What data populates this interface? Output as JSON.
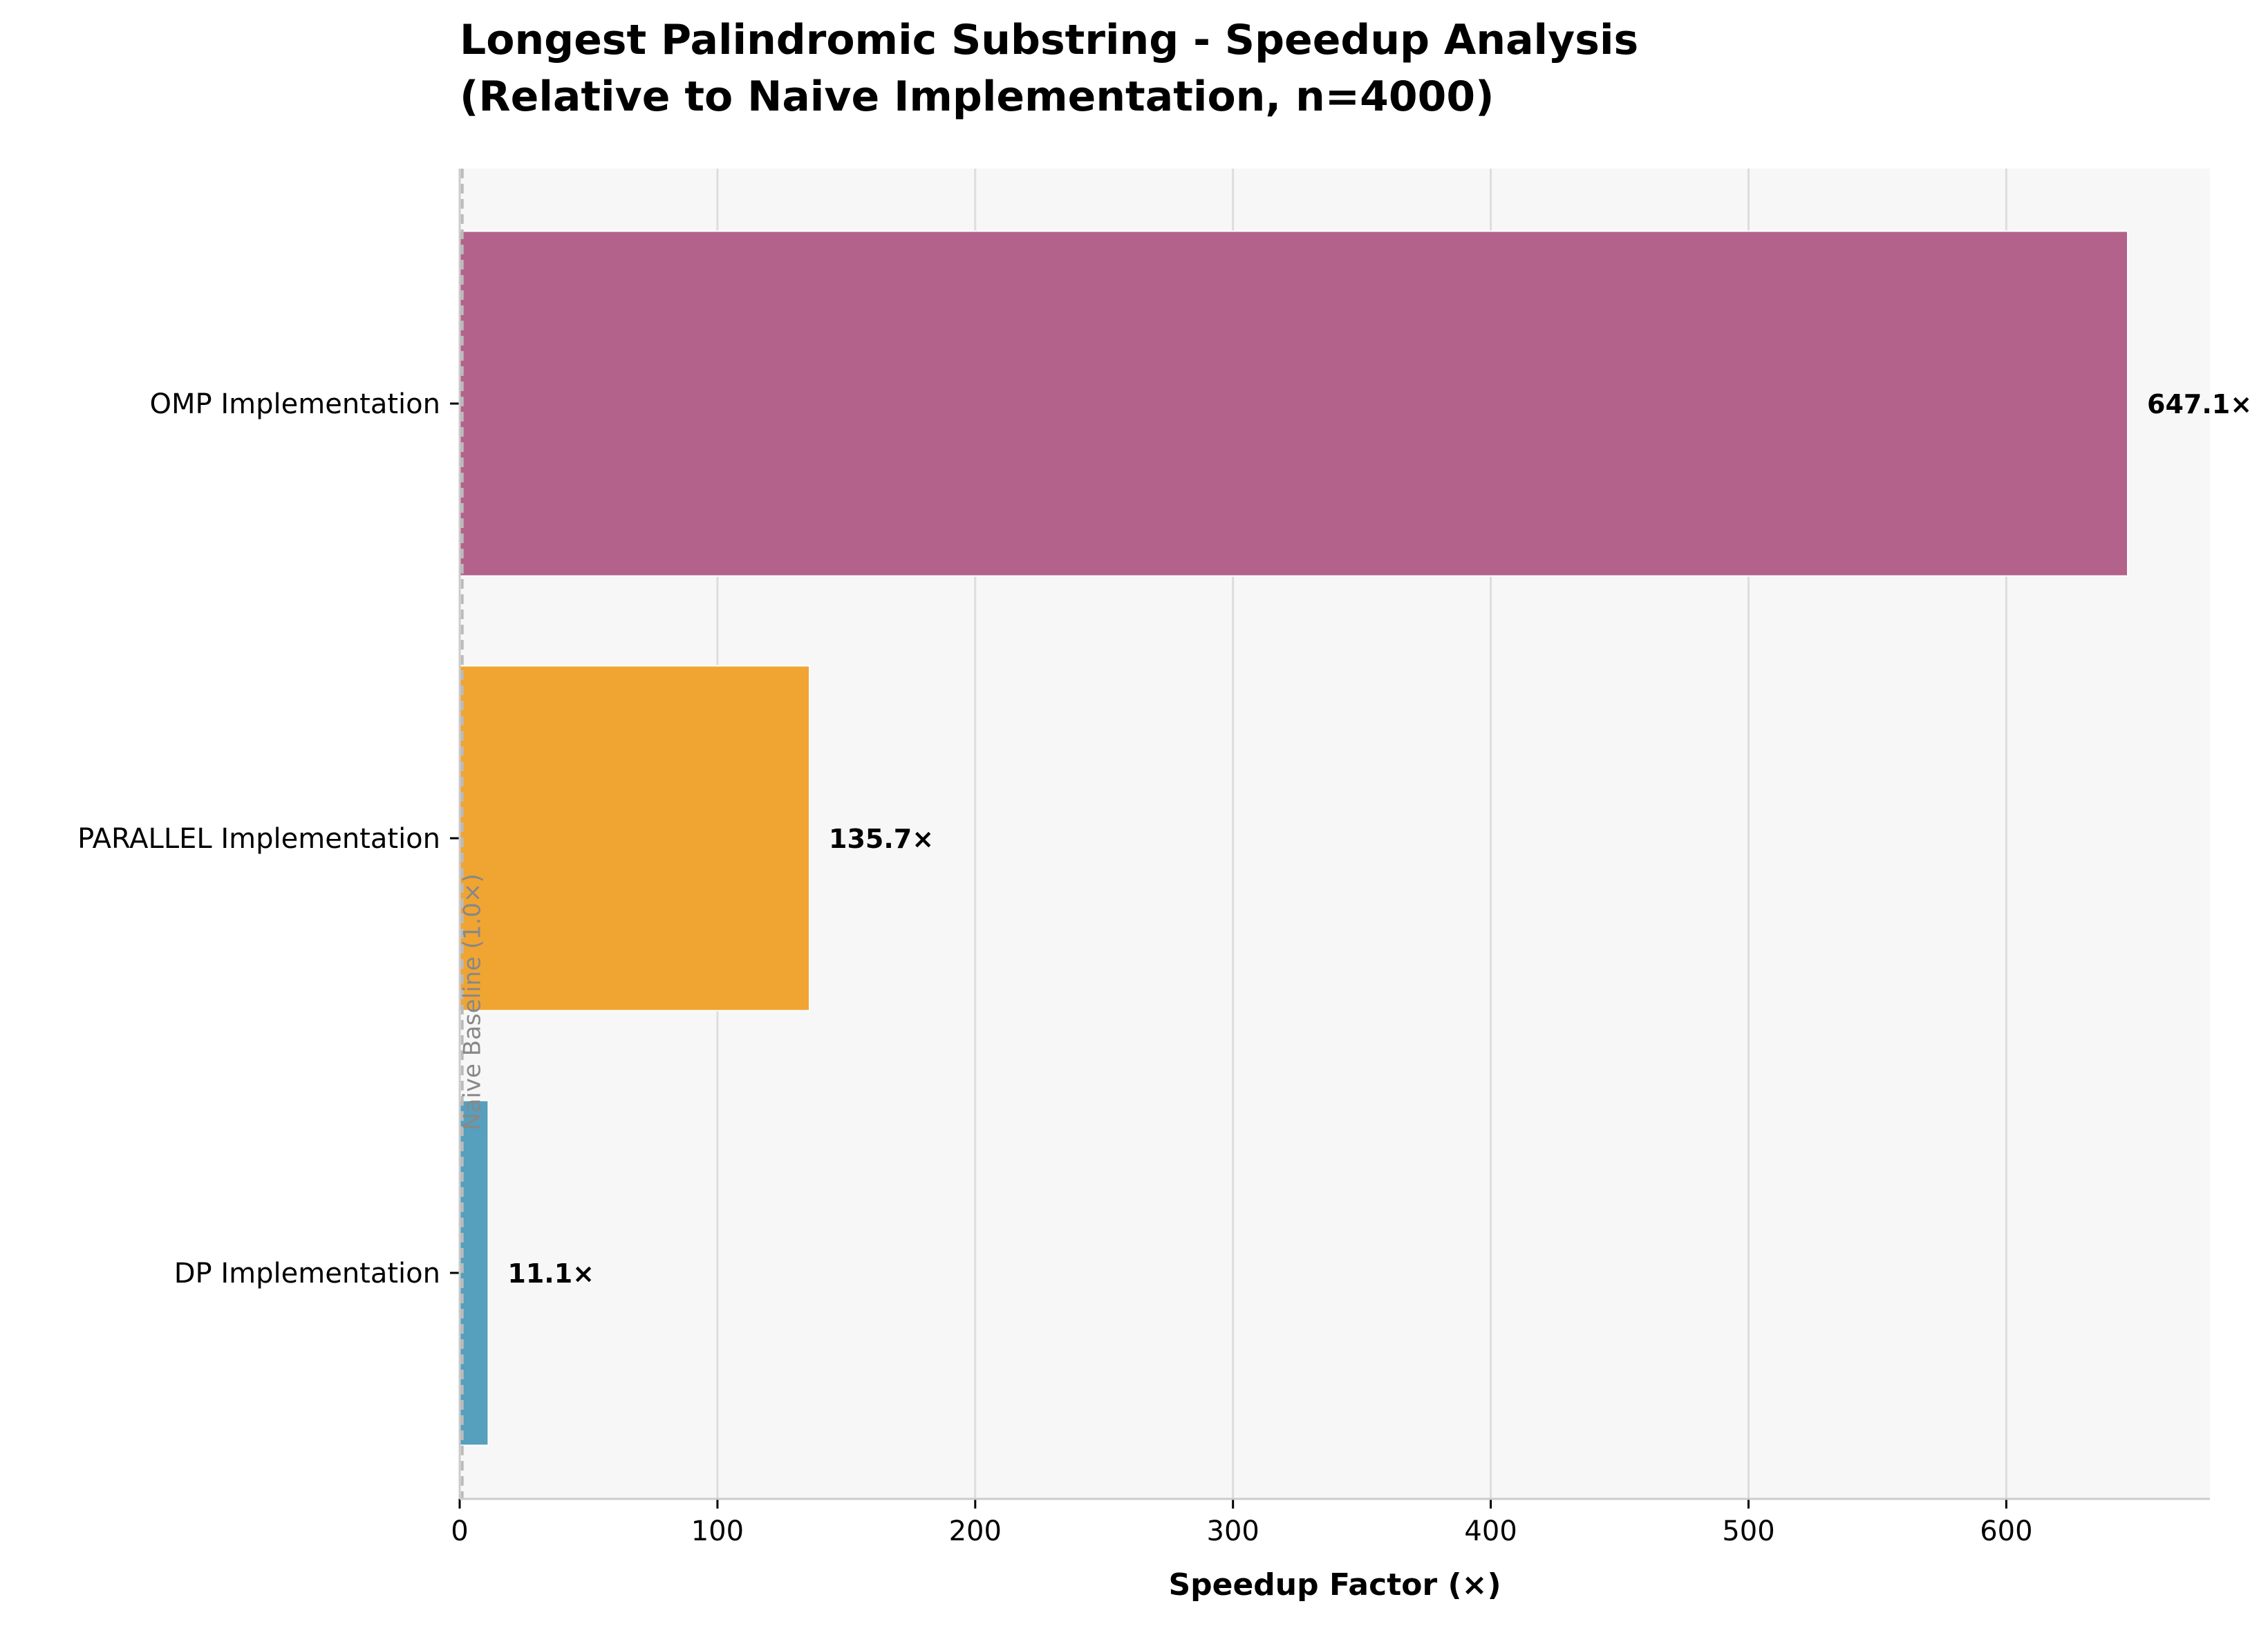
{
  "chart_data": {
    "type": "bar",
    "orientation": "horizontal",
    "title": "Longest Palindromic Substring - Speedup Analysis\n(Relative to Naive Implementation, n=4000)",
    "title_lines": [
      "Longest Palindromic Substring - Speedup Analysis",
      "(Relative to Naive Implementation, n=4000)"
    ],
    "xlabel": "Speedup Factor (×)",
    "ylabel": "",
    "categories": [
      "DP Implementation",
      "PARALLEL Implementation",
      "OMP Implementation"
    ],
    "values": [
      11.1,
      135.7,
      647.1
    ],
    "value_labels": [
      "11.1×",
      "135.7×",
      "647.1×"
    ],
    "colors": [
      "#569fbd",
      "#f0a432",
      "#b3638b"
    ],
    "xlim": [
      0,
      679
    ],
    "xticks": [
      0,
      100,
      200,
      300,
      400,
      500,
      600
    ],
    "xtick_labels": [
      "0",
      "100",
      "200",
      "300",
      "400",
      "500",
      "600"
    ],
    "grid": "x",
    "baseline": {
      "value": 1.0,
      "label": "Naive Baseline (1.0×)",
      "style": "dashed",
      "color": "#bbbbbb"
    },
    "background": "#f7f7f7"
  }
}
